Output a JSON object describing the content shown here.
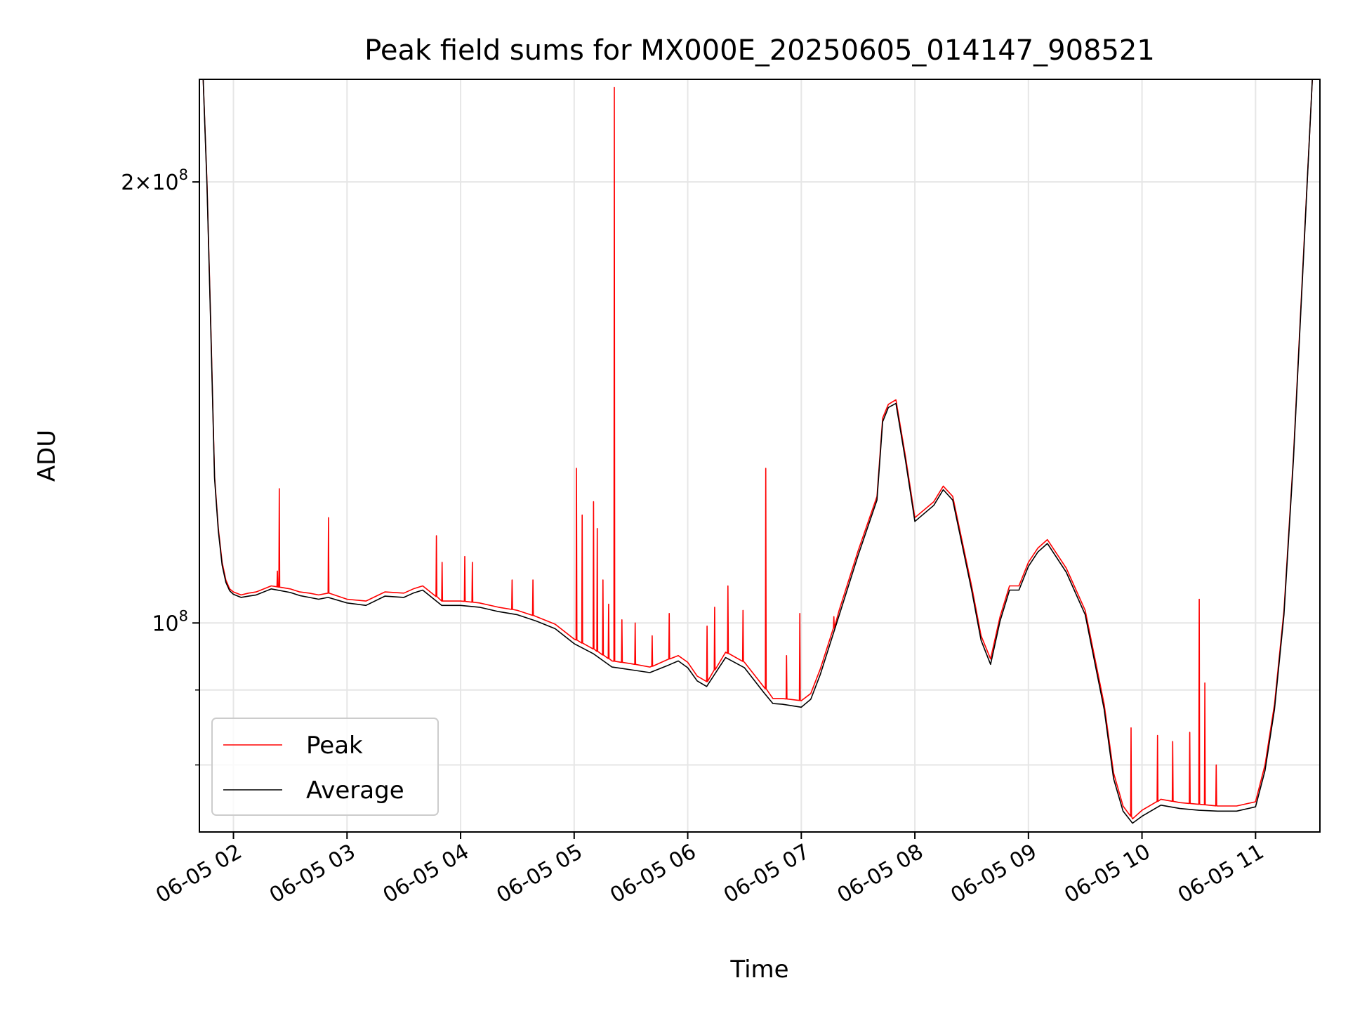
{
  "chart_data": {
    "type": "line",
    "title": "Peak field sums for MX000E_20250605_014147_908521",
    "xlabel": "Time",
    "ylabel": "ADU",
    "yscale": "log",
    "grid": true,
    "legend_position": "lower-left",
    "x_ticks": [
      "06-05 02",
      "06-05 03",
      "06-05 04",
      "06-05 05",
      "06-05 06",
      "06-05 07",
      "06-05 08",
      "06-05 09",
      "06-05 10",
      "06-05 11"
    ],
    "y_ticks": [
      {
        "label_base": "2",
        "label_exp": "8",
        "value": 200000000,
        "style": "mult"
      },
      {
        "label_base": "10",
        "label_exp": "8",
        "value": 100000000,
        "style": "pow"
      }
    ],
    "xlim": [
      "06-05 01:42",
      "06-05 11:34"
    ],
    "ylim": [
      72000000,
      235000000
    ],
    "series": [
      {
        "name": "Peak",
        "color": "#ff0000",
        "x": [
          "01:42",
          "01:44",
          "01:46",
          "01:48",
          "01:50",
          "01:52",
          "01:54",
          "01:56",
          "01:58",
          "02:00",
          "02:04",
          "02:08",
          "02:12",
          "02:20",
          "02:30",
          "02:35",
          "02:40",
          "02:45",
          "02:50",
          "03:00",
          "03:10",
          "03:20",
          "03:30",
          "03:35",
          "03:40",
          "03:50",
          "04:00",
          "04:10",
          "04:20",
          "04:30",
          "04:40",
          "04:50",
          "05:00",
          "05:10",
          "05:20",
          "05:30",
          "05:40",
          "05:50",
          "05:55",
          "06:00",
          "06:05",
          "06:10",
          "06:20",
          "06:30",
          "06:40",
          "06:45",
          "06:50",
          "07:00",
          "07:05",
          "07:10",
          "07:20",
          "07:30",
          "07:40",
          "07:43",
          "07:46",
          "07:50",
          "07:55",
          "08:00",
          "08:10",
          "08:15",
          "08:20",
          "08:30",
          "08:35",
          "08:40",
          "08:45",
          "08:50",
          "08:55",
          "09:00",
          "09:05",
          "09:10",
          "09:20",
          "09:30",
          "09:40",
          "09:45",
          "09:50",
          "09:55",
          "10:00",
          "10:10",
          "10:20",
          "10:30",
          "10:40",
          "10:50",
          "11:00",
          "11:05",
          "11:10",
          "11:15",
          "11:20",
          "11:25",
          "11:30",
          "11:34"
        ],
        "y": [
          235000000,
          235000000,
          200000000,
          160000000,
          126000000,
          116000000,
          110000000,
          107000000,
          105500000,
          105000000,
          104500000,
          104800000,
          105000000,
          106000000,
          105500000,
          105000000,
          104800000,
          104500000,
          104800000,
          103800000,
          103500000,
          105000000,
          104800000,
          105500000,
          106000000,
          103500000,
          103500000,
          103200000,
          102500000,
          102000000,
          101000000,
          99800000,
          97500000,
          96000000,
          94200000,
          93800000,
          93300000,
          94500000,
          95000000,
          94000000,
          92000000,
          91200000,
          95500000,
          94000000,
          90500000,
          88800000,
          88800000,
          88500000,
          89500000,
          93000000,
          102000000,
          112000000,
          122000000,
          138000000,
          141000000,
          142000000,
          130000000,
          118000000,
          121000000,
          124000000,
          122000000,
          106000000,
          98000000,
          94500000,
          101000000,
          106000000,
          106000000,
          110000000,
          112500000,
          114000000,
          109000000,
          102000000,
          88000000,
          79000000,
          75000000,
          73500000,
          74500000,
          75800000,
          75400000,
          75200000,
          75000000,
          75000000,
          75500000,
          80000000,
          88000000,
          102000000,
          130000000,
          175000000,
          235000000,
          235000000
        ],
        "spikes": [
          {
            "x": "02:24",
            "y": 123500000
          },
          {
            "x": "02:23",
            "y": 108500000
          },
          {
            "x": "02:50",
            "y": 118000000
          },
          {
            "x": "03:47",
            "y": 114700000
          },
          {
            "x": "03:50",
            "y": 110000000
          },
          {
            "x": "04:02",
            "y": 111000000
          },
          {
            "x": "04:06",
            "y": 110000000
          },
          {
            "x": "04:27",
            "y": 107000000
          },
          {
            "x": "04:38",
            "y": 107000000
          },
          {
            "x": "05:01",
            "y": 127500000
          },
          {
            "x": "05:04",
            "y": 118500000
          },
          {
            "x": "05:10",
            "y": 121000000
          },
          {
            "x": "05:12",
            "y": 116000000
          },
          {
            "x": "05:15",
            "y": 107000000
          },
          {
            "x": "05:18",
            "y": 103000000
          },
          {
            "x": "05:21",
            "y": 232000000
          },
          {
            "x": "05:25",
            "y": 100500000
          },
          {
            "x": "05:32",
            "y": 100000000
          },
          {
            "x": "05:41",
            "y": 98000000
          },
          {
            "x": "05:50",
            "y": 101500000
          },
          {
            "x": "06:10",
            "y": 99500000
          },
          {
            "x": "06:14",
            "y": 102500000
          },
          {
            "x": "06:21",
            "y": 106000000
          },
          {
            "x": "06:29",
            "y": 102000000
          },
          {
            "x": "06:41",
            "y": 127500000
          },
          {
            "x": "06:52",
            "y": 95000000
          },
          {
            "x": "06:59",
            "y": 101500000
          },
          {
            "x": "07:17",
            "y": 101000000
          },
          {
            "x": "09:54",
            "y": 84800000
          },
          {
            "x": "10:08",
            "y": 83800000
          },
          {
            "x": "10:16",
            "y": 83000000
          },
          {
            "x": "10:25",
            "y": 84200000
          },
          {
            "x": "10:30",
            "y": 103800000
          },
          {
            "x": "10:33",
            "y": 91000000
          },
          {
            "x": "10:39",
            "y": 80000000
          }
        ]
      },
      {
        "name": "Average",
        "color": "#000000",
        "x": [
          "01:42",
          "01:44",
          "01:46",
          "01:48",
          "01:50",
          "01:52",
          "01:54",
          "01:56",
          "01:58",
          "02:00",
          "02:04",
          "02:08",
          "02:12",
          "02:20",
          "02:30",
          "02:35",
          "02:40",
          "02:45",
          "02:50",
          "03:00",
          "03:10",
          "03:20",
          "03:30",
          "03:35",
          "03:40",
          "03:50",
          "04:00",
          "04:10",
          "04:20",
          "04:30",
          "04:40",
          "04:50",
          "05:00",
          "05:10",
          "05:20",
          "05:30",
          "05:40",
          "05:50",
          "05:55",
          "06:00",
          "06:05",
          "06:10",
          "06:20",
          "06:30",
          "06:40",
          "06:45",
          "06:50",
          "07:00",
          "07:05",
          "07:10",
          "07:20",
          "07:30",
          "07:40",
          "07:43",
          "07:46",
          "07:50",
          "07:55",
          "08:00",
          "08:10",
          "08:15",
          "08:20",
          "08:30",
          "08:35",
          "08:40",
          "08:45",
          "08:50",
          "08:55",
          "09:00",
          "09:05",
          "09:10",
          "09:20",
          "09:30",
          "09:40",
          "09:45",
          "09:50",
          "09:55",
          "10:00",
          "10:10",
          "10:20",
          "10:30",
          "10:40",
          "10:50",
          "11:00",
          "11:05",
          "11:10",
          "11:15",
          "11:20",
          "11:25",
          "11:30",
          "11:34"
        ],
        "y": [
          235000000,
          235000000,
          199000000,
          159000000,
          125500000,
          115500000,
          109500000,
          106600000,
          105200000,
          104600000,
          104100000,
          104300000,
          104500000,
          105500000,
          104900000,
          104400000,
          104100000,
          103800000,
          104100000,
          103200000,
          102800000,
          104300000,
          104100000,
          104800000,
          105300000,
          102800000,
          102800000,
          102500000,
          101800000,
          101300000,
          100300000,
          99100000,
          96800000,
          95300000,
          93300000,
          92900000,
          92500000,
          93600000,
          94200000,
          93200000,
          91300000,
          90500000,
          94700000,
          93200000,
          89700000,
          88100000,
          88000000,
          87600000,
          88700000,
          92200000,
          101200000,
          111200000,
          121300000,
          137200000,
          140300000,
          141200000,
          129200000,
          117300000,
          120300000,
          123300000,
          121300000,
          105300000,
          97300000,
          93700000,
          100300000,
          105300000,
          105300000,
          109300000,
          111800000,
          113300000,
          108300000,
          101300000,
          87300000,
          78300000,
          74400000,
          73000000,
          73800000,
          75100000,
          74700000,
          74500000,
          74400000,
          74400000,
          74900000,
          79300000,
          87300000,
          101300000,
          129300000,
          174000000,
          235000000,
          235000000
        ]
      }
    ]
  }
}
